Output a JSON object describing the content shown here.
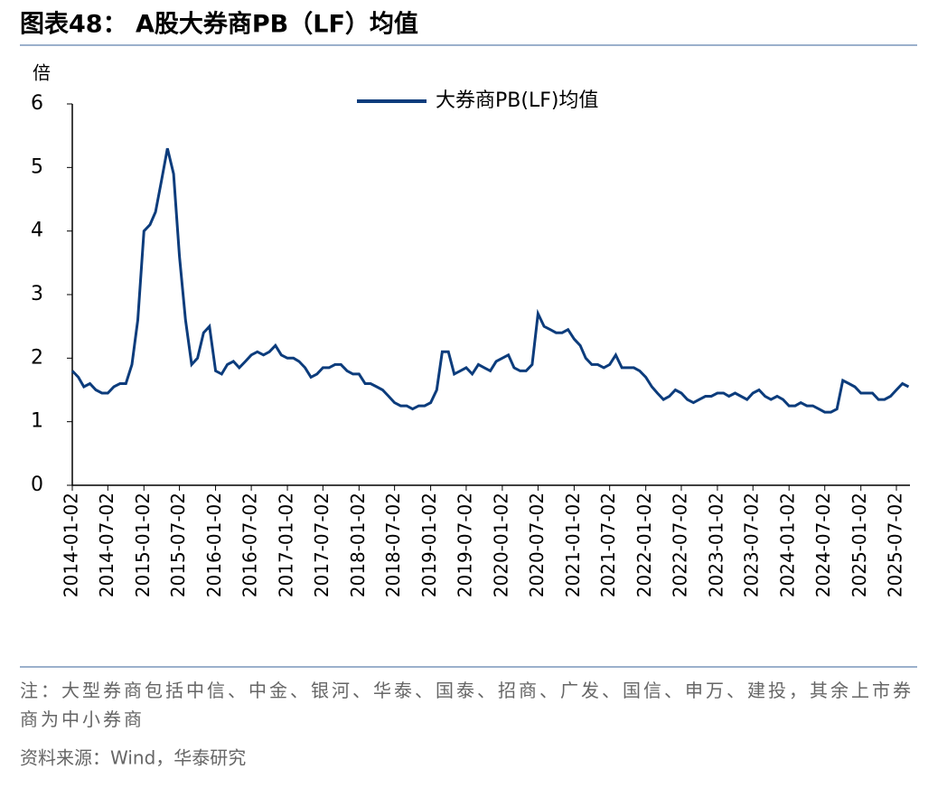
{
  "chart_data": {
    "type": "line",
    "title": "图表48： A股大券商PB（LF）均值",
    "y_unit": "倍",
    "note": "注：大型券商包括中信、中金、银河、华泰、国泰、招商、广发、国信、申万、建投，其余上市券商为中小券商",
    "source": "资料来源：Wind，华泰研究",
    "x": [
      "2014-01-02",
      "2014-02-02",
      "2014-03-02",
      "2014-04-02",
      "2014-05-02",
      "2014-06-02",
      "2014-07-02",
      "2014-08-02",
      "2014-09-02",
      "2014-10-02",
      "2014-11-02",
      "2014-12-02",
      "2015-01-02",
      "2015-02-02",
      "2015-03-02",
      "2015-04-02",
      "2015-05-02",
      "2015-06-02",
      "2015-07-02",
      "2015-08-02",
      "2015-09-02",
      "2015-10-02",
      "2015-11-02",
      "2015-12-02",
      "2016-01-02",
      "2016-02-02",
      "2016-03-02",
      "2016-04-02",
      "2016-05-02",
      "2016-06-02",
      "2016-07-02",
      "2016-08-02",
      "2016-09-02",
      "2016-10-02",
      "2016-11-02",
      "2016-12-02",
      "2017-01-02",
      "2017-02-02",
      "2017-03-02",
      "2017-04-02",
      "2017-05-02",
      "2017-06-02",
      "2017-07-02",
      "2017-08-02",
      "2017-09-02",
      "2017-10-02",
      "2017-11-02",
      "2017-12-02",
      "2018-01-02",
      "2018-02-02",
      "2018-03-02",
      "2018-04-02",
      "2018-05-02",
      "2018-06-02",
      "2018-07-02",
      "2018-08-02",
      "2018-09-02",
      "2018-10-02",
      "2018-11-02",
      "2018-12-02",
      "2019-01-02",
      "2019-02-02",
      "2019-03-02",
      "2019-04-02",
      "2019-05-02",
      "2019-06-02",
      "2019-07-02",
      "2019-08-02",
      "2019-09-02",
      "2019-10-02",
      "2019-11-02",
      "2019-12-02",
      "2020-01-02",
      "2020-02-02",
      "2020-03-02",
      "2020-04-02",
      "2020-05-02",
      "2020-06-02",
      "2020-07-02",
      "2020-08-02",
      "2020-09-02",
      "2020-10-02",
      "2020-11-02",
      "2020-12-02",
      "2021-01-02",
      "2021-02-02",
      "2021-03-02",
      "2021-04-02",
      "2021-05-02",
      "2021-06-02",
      "2021-07-02",
      "2021-08-02",
      "2021-09-02",
      "2021-10-02",
      "2021-11-02",
      "2021-12-02",
      "2022-01-02",
      "2022-02-02",
      "2022-03-02",
      "2022-04-02",
      "2022-05-02",
      "2022-06-02",
      "2022-07-02",
      "2022-08-02",
      "2022-09-02",
      "2022-10-02",
      "2022-11-02",
      "2022-12-02",
      "2023-01-02",
      "2023-02-02",
      "2023-03-02",
      "2023-04-02",
      "2023-05-02",
      "2023-06-02",
      "2023-07-02",
      "2023-08-02",
      "2023-09-02",
      "2023-10-02",
      "2023-11-02",
      "2023-12-02",
      "2024-01-02",
      "2024-02-02",
      "2024-03-02",
      "2024-04-02",
      "2024-05-02",
      "2024-06-02",
      "2024-07-02",
      "2024-08-02",
      "2024-09-02",
      "2024-10-02",
      "2024-11-02",
      "2024-12-02",
      "2025-01-02",
      "2025-02-02",
      "2025-03-02",
      "2025-04-02",
      "2025-05-02",
      "2025-06-02",
      "2025-07-02",
      "2025-08-02",
      "2025-09-02"
    ],
    "series": [
      {
        "name": "大券商PB(LF)均值",
        "color": "#0c3c7c",
        "values": [
          1.8,
          1.7,
          1.55,
          1.6,
          1.5,
          1.45,
          1.45,
          1.55,
          1.6,
          1.6,
          1.9,
          2.6,
          4.0,
          4.1,
          4.3,
          4.8,
          5.3,
          4.9,
          3.6,
          2.6,
          1.9,
          2.0,
          2.4,
          2.5,
          1.8,
          1.75,
          1.9,
          1.95,
          1.85,
          1.95,
          2.05,
          2.1,
          2.05,
          2.1,
          2.2,
          2.05,
          2.0,
          2.0,
          1.95,
          1.85,
          1.7,
          1.75,
          1.85,
          1.85,
          1.9,
          1.9,
          1.8,
          1.75,
          1.75,
          1.6,
          1.6,
          1.55,
          1.5,
          1.4,
          1.3,
          1.25,
          1.25,
          1.2,
          1.25,
          1.25,
          1.3,
          1.5,
          2.1,
          2.1,
          1.75,
          1.8,
          1.85,
          1.75,
          1.9,
          1.85,
          1.8,
          1.95,
          2.0,
          2.05,
          1.85,
          1.8,
          1.8,
          1.9,
          2.7,
          2.5,
          2.45,
          2.4,
          2.4,
          2.45,
          2.3,
          2.2,
          2.0,
          1.9,
          1.9,
          1.85,
          1.9,
          2.05,
          1.85,
          1.85,
          1.85,
          1.8,
          1.7,
          1.55,
          1.45,
          1.35,
          1.4,
          1.5,
          1.45,
          1.35,
          1.3,
          1.35,
          1.4,
          1.4,
          1.45,
          1.45,
          1.4,
          1.45,
          1.4,
          1.35,
          1.45,
          1.5,
          1.4,
          1.35,
          1.4,
          1.35,
          1.25,
          1.25,
          1.3,
          1.25,
          1.25,
          1.2,
          1.15,
          1.15,
          1.2,
          1.65,
          1.6,
          1.55,
          1.45,
          1.45,
          1.45,
          1.35,
          1.35,
          1.4,
          1.5,
          1.6,
          1.55
        ]
      }
    ],
    "xlim": [
      "2014-01-02",
      "2025-09-09"
    ],
    "xticks": [
      "2014-01-02",
      "2014-07-02",
      "2015-01-02",
      "2015-07-02",
      "2016-01-02",
      "2016-07-02",
      "2017-01-02",
      "2017-07-02",
      "2018-01-02",
      "2018-07-02",
      "2019-01-02",
      "2019-07-02",
      "2020-01-02",
      "2020-07-02",
      "2021-01-02",
      "2021-07-02",
      "2022-01-02",
      "2022-07-02",
      "2023-01-02",
      "2023-07-02",
      "2024-01-02",
      "2024-07-02",
      "2025-01-02",
      "2025-07-02"
    ],
    "ylim": [
      0,
      6
    ],
    "yticks": [
      0,
      1,
      2,
      3,
      4,
      5,
      6
    ],
    "legend": "top"
  }
}
